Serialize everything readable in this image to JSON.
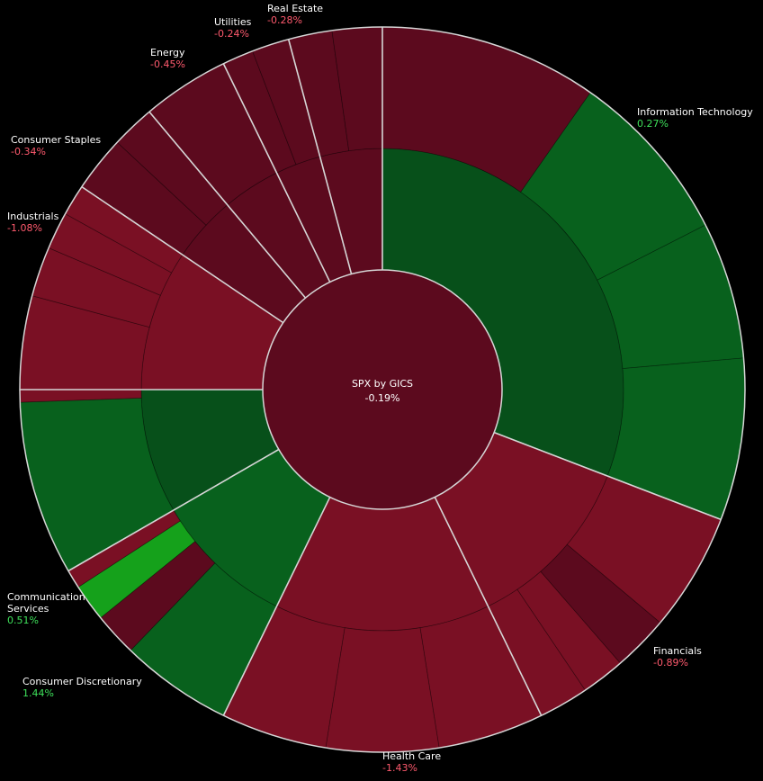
{
  "chart_data": {
    "type": "sunburst",
    "title": "SPX by GICS",
    "total_change": "-0.19%",
    "colors": {
      "negative_dark": "#5c0a1e",
      "negative": "#7a1024",
      "positive_dark": "#07501a",
      "positive": "#08611d",
      "positive_bright": "#15a11b",
      "separator": "#d6d6d6",
      "label_text": "#ffffff",
      "label_negative": "#ff5a6e",
      "label_positive": "#3ee05a"
    },
    "sectors": [
      {
        "name": "Information Technology",
        "change": "0.27%",
        "direction": "positive"
      },
      {
        "name": "Financials",
        "change": "-0.89%",
        "direction": "negative"
      },
      {
        "name": "Health Care",
        "change": "-1.43%",
        "direction": "negative"
      },
      {
        "name": "Consumer Discretionary",
        "change": "1.44%",
        "direction": "positive"
      },
      {
        "name": "Communication Services",
        "change": "0.51%",
        "direction": "positive"
      },
      {
        "name": "Industrials",
        "change": "-1.08%",
        "direction": "negative"
      },
      {
        "name": "Consumer Staples",
        "change": "-0.34%",
        "direction": "negative"
      },
      {
        "name": "Energy",
        "change": "-0.45%",
        "direction": "negative"
      },
      {
        "name": "Utilities",
        "change": "-0.24%",
        "direction": "negative"
      },
      {
        "name": "Real Estate",
        "change": "-0.28%",
        "direction": "negative"
      }
    ]
  }
}
